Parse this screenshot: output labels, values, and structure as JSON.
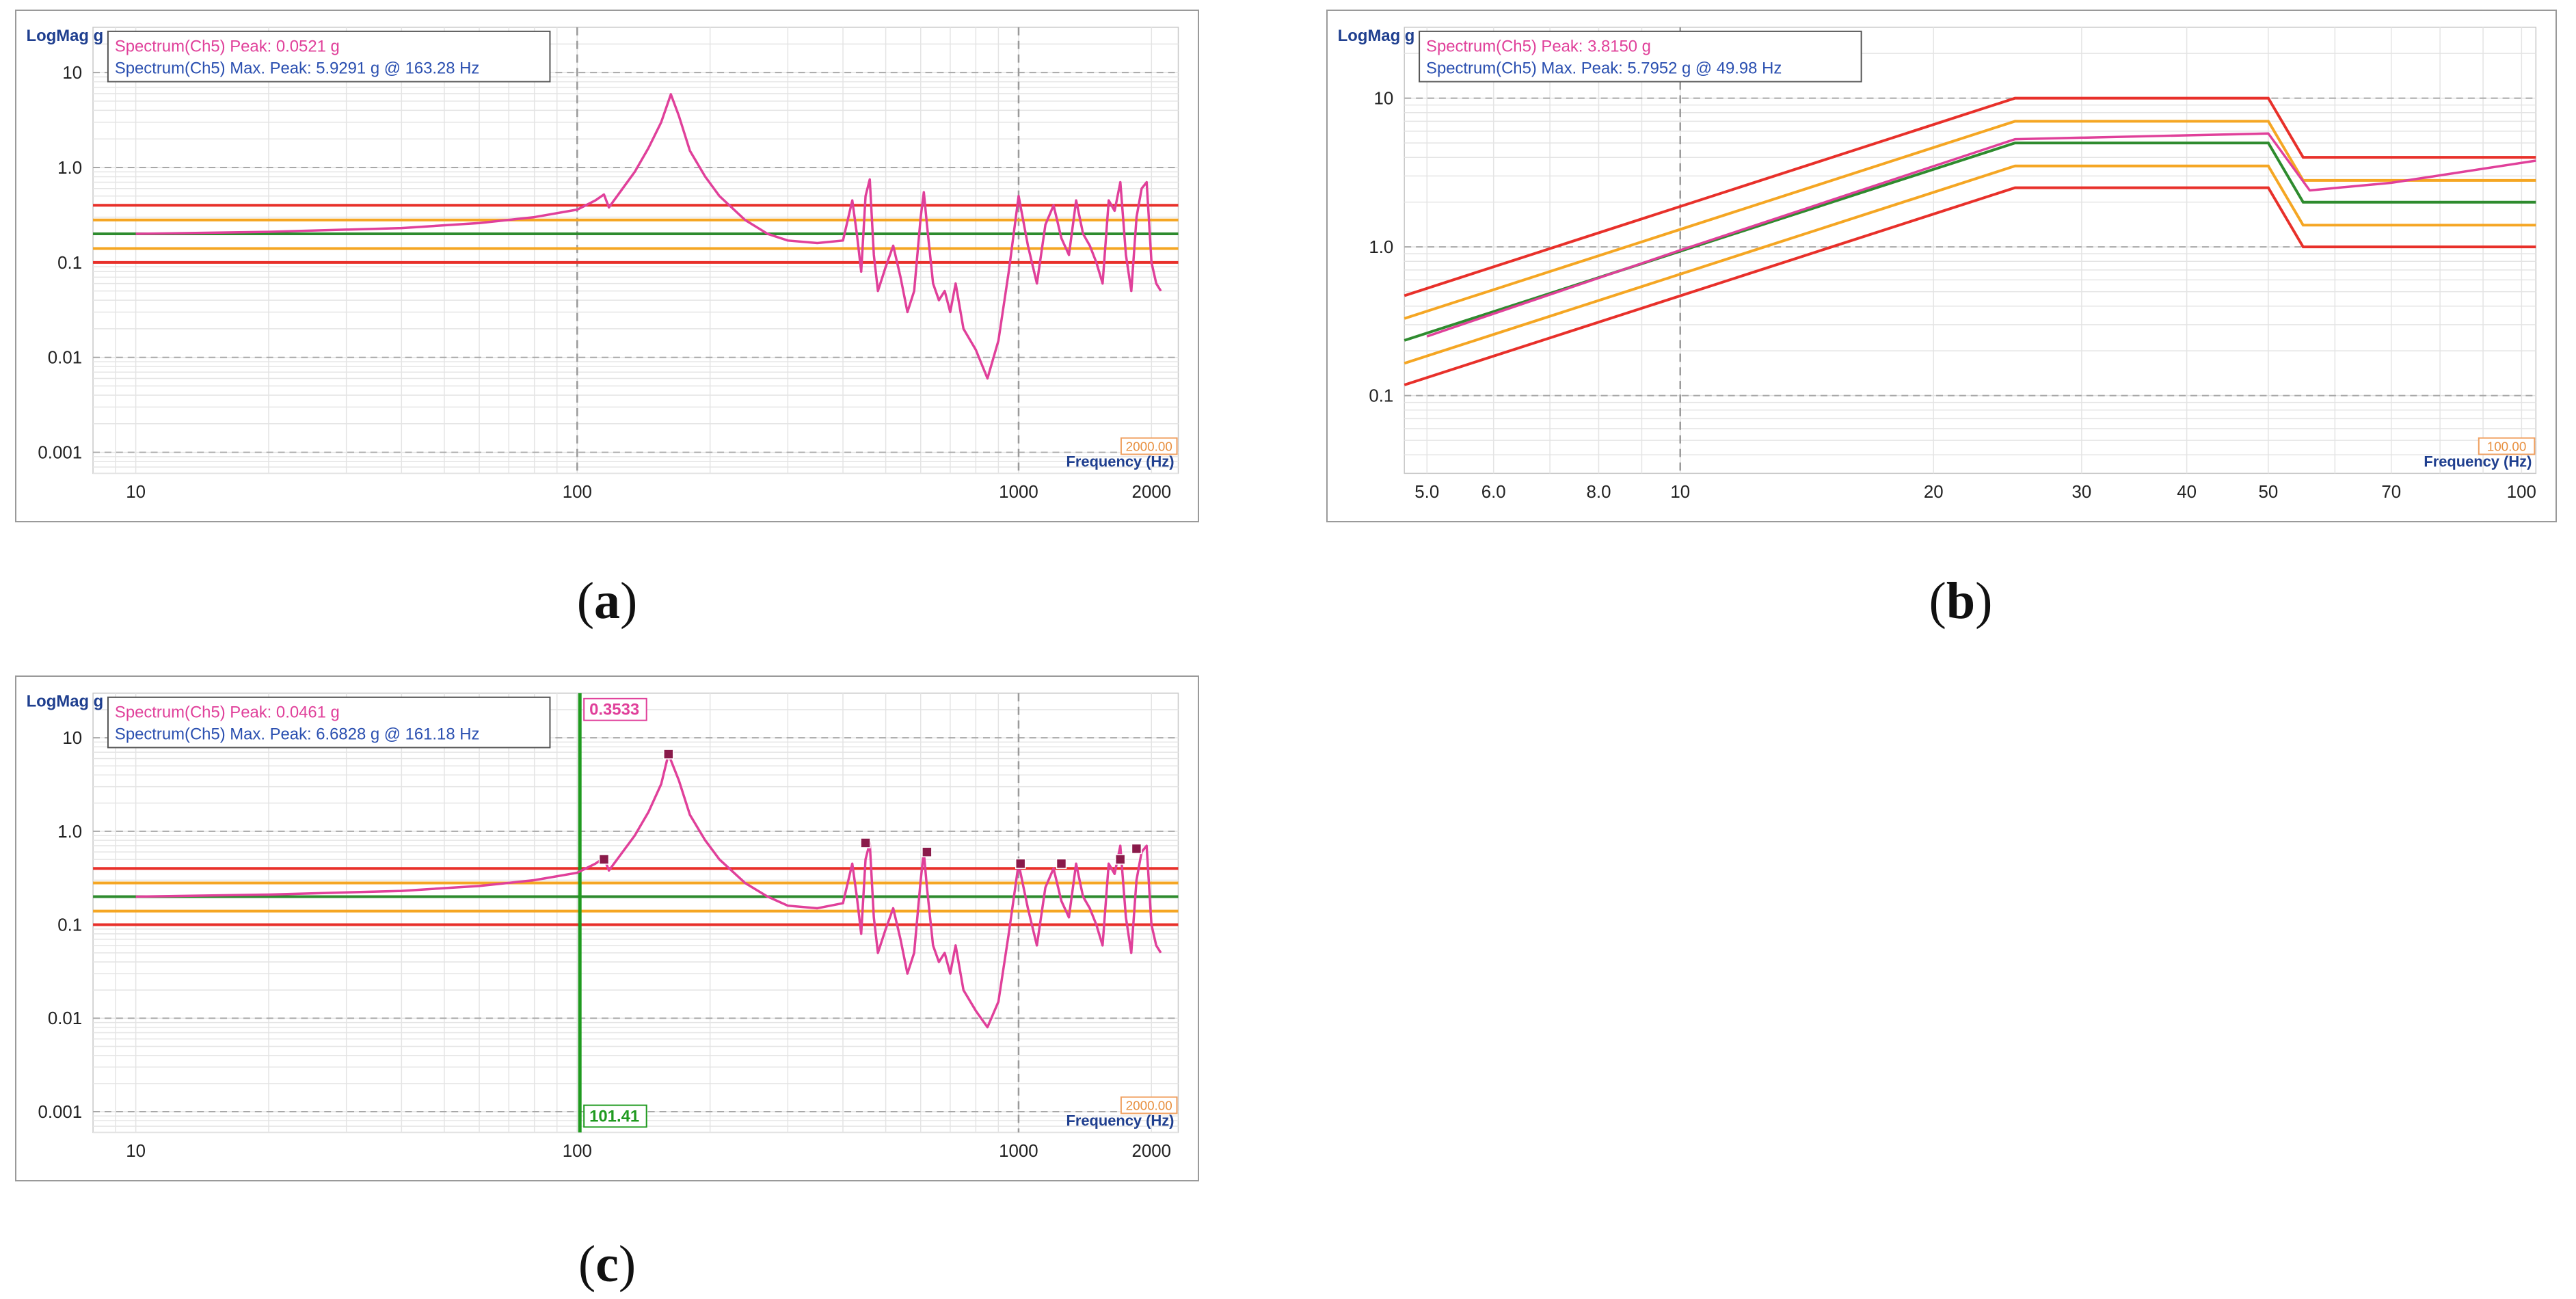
{
  "captions": {
    "a": "a",
    "b": "b",
    "c": "c"
  },
  "colors": {
    "trace": "#e0409a",
    "limit_red": "#e8302a",
    "limit_orange": "#f5a623",
    "profile_green": "#2e8b2e",
    "legend_blue": "#2a4fb0",
    "cursor_green": "#1f9a1f",
    "marker": "#8a1a4a"
  },
  "chart_data": [
    {
      "id": "a",
      "type": "line",
      "scale": "log-log",
      "ylabel": "LogMag g",
      "xlabel": "Frequency (Hz)",
      "xlim": [
        8,
        2300
      ],
      "ylim": [
        0.0006,
        30
      ],
      "xticks": [
        10,
        100,
        1000,
        2000
      ],
      "xtick_labels": [
        "10",
        "100",
        "1000",
        "2000"
      ],
      "yticks": [
        10,
        1,
        0.1,
        0.01,
        0.001
      ],
      "ytick_labels": [
        "10",
        "1.0",
        "0.1",
        "0.01",
        "0.001"
      ],
      "x_major_grid": [
        100,
        1000
      ],
      "legend": [
        "Spectrum(Ch5) Peak: 0.0521 g",
        "Spectrum(Ch5) Max. Peak: 5.9291 g @ 163.28 Hz"
      ],
      "end_box": "2000.00",
      "limits": [
        {
          "color": "limit_red",
          "x": [
            8,
            2300
          ],
          "y": [
            0.4,
            0.4
          ]
        },
        {
          "color": "limit_orange",
          "x": [
            8,
            2300
          ],
          "y": [
            0.28,
            0.28
          ]
        },
        {
          "color": "profile_green",
          "x": [
            8,
            2300
          ],
          "y": [
            0.2,
            0.2
          ]
        },
        {
          "color": "limit_orange",
          "x": [
            8,
            2300
          ],
          "y": [
            0.14,
            0.14
          ]
        },
        {
          "color": "limit_red",
          "x": [
            8,
            2300
          ],
          "y": [
            0.1,
            0.1
          ]
        }
      ],
      "series": [
        {
          "color": "trace",
          "x": [
            10,
            20,
            40,
            60,
            80,
            100,
            110,
            115,
            118,
            125,
            135,
            145,
            155,
            163,
            170,
            180,
            195,
            210,
            240,
            270,
            300,
            350,
            400,
            420,
            430,
            440,
            450,
            460,
            470,
            480,
            500,
            520,
            540,
            560,
            580,
            600,
            610,
            620,
            640,
            660,
            680,
            700,
            720,
            750,
            800,
            850,
            900,
            950,
            1000,
            1050,
            1100,
            1150,
            1200,
            1250,
            1300,
            1350,
            1400,
            1450,
            1500,
            1550,
            1600,
            1650,
            1700,
            1750,
            1800,
            1850,
            1900,
            1950,
            2000,
            2050,
            2100
          ],
          "y": [
            0.2,
            0.21,
            0.23,
            0.26,
            0.3,
            0.36,
            0.45,
            0.52,
            0.38,
            0.55,
            0.9,
            1.6,
            3.0,
            5.9,
            3.5,
            1.5,
            0.8,
            0.5,
            0.28,
            0.2,
            0.17,
            0.16,
            0.17,
            0.45,
            0.2,
            0.08,
            0.5,
            0.75,
            0.12,
            0.05,
            0.09,
            0.15,
            0.07,
            0.03,
            0.05,
            0.3,
            0.55,
            0.25,
            0.06,
            0.04,
            0.05,
            0.03,
            0.06,
            0.02,
            0.012,
            0.006,
            0.015,
            0.08,
            0.5,
            0.15,
            0.06,
            0.25,
            0.4,
            0.18,
            0.12,
            0.45,
            0.2,
            0.15,
            0.1,
            0.06,
            0.45,
            0.35,
            0.7,
            0.12,
            0.05,
            0.3,
            0.6,
            0.7,
            0.1,
            0.06,
            0.05
          ]
        }
      ]
    },
    {
      "id": "b",
      "type": "line",
      "scale": "log-log",
      "ylabel": "LogMag g",
      "xlabel": "Frequency (Hz)",
      "xlim": [
        4.7,
        104
      ],
      "ylim": [
        0.03,
        30
      ],
      "xticks": [
        5,
        6,
        8,
        10,
        20,
        30,
        40,
        50,
        70,
        100
      ],
      "xtick_labels": [
        "5.0",
        "6.0",
        "8.0",
        "10",
        "20",
        "30",
        "40",
        "50",
        "70",
        "100"
      ],
      "yticks": [
        10,
        1,
        0.1
      ],
      "ytick_labels": [
        "10",
        "1.0",
        "0.1"
      ],
      "x_major_grid": [
        10
      ],
      "legend": [
        "Spectrum(Ch5) Peak: 3.8150 g",
        "Spectrum(Ch5) Max. Peak: 5.7952 g @ 49.98 Hz"
      ],
      "end_box": "100.00",
      "limits": [
        {
          "color": "limit_red",
          "x": [
            4.7,
            25,
            50,
            55,
            104
          ],
          "y": [
            0.47,
            10,
            10,
            4,
            4
          ]
        },
        {
          "color": "limit_orange",
          "x": [
            4.7,
            25,
            50,
            55,
            104
          ],
          "y": [
            0.33,
            7,
            7,
            2.8,
            2.8
          ]
        },
        {
          "color": "profile_green",
          "x": [
            4.7,
            25,
            50,
            55,
            104
          ],
          "y": [
            0.235,
            5,
            5,
            2,
            2
          ]
        },
        {
          "color": "limit_orange",
          "x": [
            4.7,
            25,
            50,
            55,
            104
          ],
          "y": [
            0.165,
            3.5,
            3.5,
            1.4,
            1.4
          ]
        },
        {
          "color": "limit_red",
          "x": [
            4.7,
            25,
            50,
            55,
            104
          ],
          "y": [
            0.118,
            2.5,
            2.5,
            1,
            1
          ]
        }
      ],
      "series": [
        {
          "color": "trace",
          "x": [
            5,
            10,
            25,
            50,
            56,
            70,
            104
          ],
          "y": [
            0.25,
            0.95,
            5.3,
            5.79,
            2.4,
            2.7,
            3.8
          ]
        }
      ]
    },
    {
      "id": "c",
      "type": "line",
      "scale": "log-log",
      "ylabel": "LogMag g",
      "xlabel": "Frequency (Hz)",
      "xlim": [
        8,
        2300
      ],
      "ylim": [
        0.0006,
        30
      ],
      "xticks": [
        10,
        100,
        1000,
        2000
      ],
      "xtick_labels": [
        "10",
        "100",
        "1000",
        "2000"
      ],
      "yticks": [
        10,
        1,
        0.1,
        0.01,
        0.001
      ],
      "ytick_labels": [
        "10",
        "1.0",
        "0.1",
        "0.01",
        "0.001"
      ],
      "x_major_grid": [
        1000
      ],
      "legend": [
        "Spectrum(Ch5) Peak: 0.0461 g",
        "Spectrum(Ch5) Max. Peak: 6.6828 g @ 161.18 Hz"
      ],
      "end_box": "2000.00",
      "cursor": {
        "x": 101.41,
        "label": "101.41",
        "value_label": "0.3533"
      },
      "limits": [
        {
          "color": "limit_red",
          "x": [
            8,
            2300
          ],
          "y": [
            0.4,
            0.4
          ]
        },
        {
          "color": "limit_orange",
          "x": [
            8,
            2300
          ],
          "y": [
            0.28,
            0.28
          ]
        },
        {
          "color": "profile_green",
          "x": [
            8,
            2300
          ],
          "y": [
            0.2,
            0.2
          ]
        },
        {
          "color": "limit_orange",
          "x": [
            8,
            2300
          ],
          "y": [
            0.14,
            0.14
          ]
        },
        {
          "color": "limit_red",
          "x": [
            8,
            2300
          ],
          "y": [
            0.1,
            0.1
          ]
        }
      ],
      "markers": {
        "x": [
          115,
          161,
          450,
          620,
          1010,
          1250,
          1700,
          1850
        ],
        "y": [
          0.5,
          6.68,
          0.75,
          0.6,
          0.45,
          0.45,
          0.5,
          0.65
        ]
      },
      "series": [
        {
          "color": "trace",
          "x": [
            10,
            20,
            40,
            60,
            80,
            100,
            110,
            115,
            118,
            125,
            135,
            145,
            155,
            161,
            170,
            180,
            195,
            210,
            240,
            270,
            300,
            350,
            400,
            420,
            430,
            440,
            450,
            460,
            470,
            480,
            500,
            520,
            540,
            560,
            580,
            600,
            610,
            620,
            640,
            660,
            680,
            700,
            720,
            750,
            800,
            850,
            900,
            950,
            1000,
            1050,
            1100,
            1150,
            1200,
            1250,
            1300,
            1350,
            1400,
            1450,
            1500,
            1550,
            1600,
            1650,
            1700,
            1750,
            1800,
            1850,
            1900,
            1950,
            2000,
            2050,
            2100
          ],
          "y": [
            0.2,
            0.21,
            0.23,
            0.26,
            0.3,
            0.36,
            0.45,
            0.52,
            0.38,
            0.55,
            0.9,
            1.6,
            3.2,
            6.68,
            3.5,
            1.5,
            0.8,
            0.5,
            0.28,
            0.2,
            0.16,
            0.15,
            0.17,
            0.45,
            0.2,
            0.08,
            0.5,
            0.75,
            0.12,
            0.05,
            0.09,
            0.15,
            0.07,
            0.03,
            0.05,
            0.3,
            0.6,
            0.25,
            0.06,
            0.04,
            0.05,
            0.03,
            0.06,
            0.02,
            0.012,
            0.008,
            0.015,
            0.08,
            0.45,
            0.15,
            0.06,
            0.25,
            0.4,
            0.18,
            0.12,
            0.45,
            0.2,
            0.15,
            0.1,
            0.06,
            0.45,
            0.35,
            0.7,
            0.12,
            0.05,
            0.3,
            0.6,
            0.7,
            0.1,
            0.06,
            0.05
          ]
        }
      ]
    }
  ]
}
